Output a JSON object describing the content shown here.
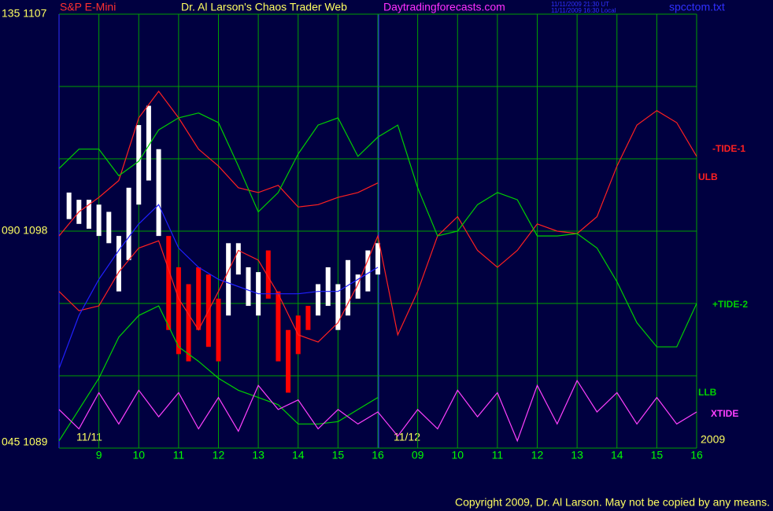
{
  "chart_data": {
    "type": "line",
    "title": "S&P E-Mini",
    "subtitle": "Dr. Al Larson's Chaos Trader Web",
    "website": "Daytradingforecasts.com",
    "timestamps": [
      "11/11/2009 21:30 UT",
      "11/11/2009 16:30 Local"
    ],
    "filename": "spcctom.txt",
    "date_labels": [
      "11/11",
      "11/12"
    ],
    "year_label": "2009",
    "copyright": "Copyright 2009, Dr. Al Larson. May not be copied by any means.",
    "xlim": [
      8,
      24
    ],
    "ylim": [
      1089,
      1107
    ],
    "grid": true,
    "xticks": [
      9,
      10,
      11,
      12,
      13,
      14,
      15,
      16,
      {
        "value": 17,
        "label": "09"
      },
      {
        "value": 18,
        "label": "10"
      },
      {
        "value": 19,
        "label": "11"
      },
      {
        "value": 20,
        "label": "12"
      },
      {
        "value": 21,
        "label": "13"
      },
      {
        "value": 22,
        "label": "14"
      },
      {
        "value": 23,
        "label": "15"
      },
      {
        "value": 24,
        "label": "16"
      }
    ],
    "yticks": [
      {
        "value": 1089,
        "label": "045  1089"
      },
      {
        "value": 1092,
        "label": null
      },
      {
        "value": 1095,
        "label": null
      },
      {
        "value": 1098,
        "label": "090  1098"
      },
      {
        "value": 1101,
        "label": null
      },
      {
        "value": 1104,
        "label": null
      },
      {
        "value": 1107,
        "label": "135  1107"
      }
    ],
    "x": [
      8,
      8.5,
      9,
      9.5,
      10,
      10.5,
      11,
      11.5,
      12,
      12.5,
      13,
      13.5,
      14,
      14.5,
      15,
      15.5,
      16,
      16.5,
      17,
      17.5,
      18,
      18.5,
      19,
      19.5,
      20,
      20.5,
      21,
      21.5,
      22,
      22.5,
      23,
      23.5,
      24
    ],
    "series": [
      {
        "name": "-TIDE-1",
        "color": "#ff2020",
        "values": [
          1095.5,
          1094.7,
          1094.9,
          1096.3,
          1097.3,
          1097.6,
          1095.2,
          1093.9,
          1095.5,
          1097.2,
          1096.8,
          1095.4,
          1093.7,
          1093.4,
          1094.2,
          1095.8,
          1097.8,
          1093.7,
          1095.5,
          1097.8,
          1098.6,
          1097.2,
          1096.5,
          1097.2,
          1098.3,
          1098.0,
          1097.9,
          1098.6,
          1100.7,
          1102.4,
          1103.0,
          1102.5,
          1101.1
        ]
      },
      {
        "name": "ULB",
        "color": "#ff2020",
        "values": [
          1097.8,
          1098.8,
          1099.4,
          1100.1,
          1102.7,
          1103.8,
          1102.7,
          1101.4,
          1100.7,
          1099.8,
          1099.6,
          1099.9,
          1099.0,
          1099.1,
          1099.4,
          1099.6,
          1100.0,
          null,
          null,
          null,
          null,
          null,
          null,
          null,
          null,
          null,
          null,
          null,
          null,
          null,
          null,
          null,
          null
        ]
      },
      {
        "name": "+TIDE-2",
        "color": "#00d000",
        "values": [
          1100.6,
          1101.4,
          1101.4,
          1100.3,
          1100.9,
          1102.2,
          1102.7,
          1102.9,
          1102.5,
          1100.7,
          1098.8,
          1099.6,
          1101.2,
          1102.4,
          1102.7,
          1101.1,
          1101.9,
          1102.4,
          1099.8,
          1097.8,
          1098.0,
          1099.1,
          1099.6,
          1099.3,
          1097.8,
          1097.8,
          1097.9,
          1097.3,
          1095.9,
          1094.2,
          1093.2,
          1093.2,
          1095.0
        ]
      },
      {
        "name": "LLB",
        "color": "#00d000",
        "values": [
          1089.3,
          1090.6,
          1091.9,
          1093.6,
          1094.5,
          1094.9,
          1093.2,
          1092.6,
          1091.9,
          1091.4,
          1091.1,
          1090.8,
          1090.0,
          1090.0,
          1090.1,
          1090.6,
          1091.1,
          null,
          null,
          null,
          null,
          null,
          null,
          null,
          null,
          null,
          null,
          null,
          null,
          null,
          null,
          null,
          null
        ]
      },
      {
        "name": "XTIDE",
        "color": "#ff40ff",
        "values": [
          1090.6,
          1089.8,
          1091.3,
          1090.0,
          1091.4,
          1090.3,
          1091.3,
          1089.8,
          1091.1,
          1089.7,
          1091.6,
          1090.6,
          1091.0,
          1089.8,
          1090.6,
          1090.0,
          1090.5,
          1089.5,
          1090.6,
          1089.8,
          1091.4,
          1090.3,
          1091.3,
          1089.3,
          1091.6,
          1090.0,
          1091.8,
          1090.5,
          1091.3,
          1090.0,
          1091.1,
          1090.0,
          1090.5
        ]
      },
      {
        "color": "#2020ff",
        "values": [
          1092.3,
          1094.5,
          1096.0,
          1097.2,
          1098.3,
          1099.1,
          1097.3,
          1096.5,
          1096.0,
          1095.7,
          1095.4,
          1095.4,
          1095.4,
          1095.5,
          1095.5,
          1096.0,
          1096.5,
          null,
          null,
          null,
          null,
          null,
          null,
          null,
          null,
          null,
          null,
          null,
          null,
          null,
          null,
          null,
          null
        ]
      }
    ],
    "price_bars": {
      "x": [
        8.25,
        8.5,
        8.75,
        9,
        9.25,
        9.5,
        9.75,
        10,
        10.25,
        10.5,
        10.75,
        11,
        11.25,
        11.5,
        11.75,
        12,
        12.25,
        12.5,
        12.75,
        13,
        13.25,
        13.5,
        13.75,
        14,
        14.25,
        14.5,
        14.75,
        15,
        15.25,
        15.5,
        15.75,
        16
      ],
      "high": [
        1099.6,
        1099.3,
        1099.3,
        1099.1,
        1098.8,
        1097.8,
        1099.8,
        1102.4,
        1103.2,
        1101.4,
        1097.8,
        1096.5,
        1095.8,
        1096.5,
        1096.2,
        1095.2,
        1097.5,
        1097.5,
        1096.5,
        1096.3,
        1097.2,
        1095.5,
        1093.9,
        1094.5,
        1094.9,
        1095.8,
        1096.5,
        1095.8,
        1096.8,
        1096.2,
        1097.2,
        1097.5
      ],
      "low": [
        1098.5,
        1098.3,
        1098.1,
        1097.8,
        1097.5,
        1095.5,
        1096.8,
        1099.1,
        1100.1,
        1097.8,
        1093.9,
        1092.9,
        1092.6,
        1093.9,
        1093.2,
        1092.6,
        1094.5,
        1096.2,
        1094.9,
        1094.5,
        1095.2,
        1092.6,
        1091.3,
        1092.9,
        1093.9,
        1094.5,
        1094.9,
        1093.9,
        1094.5,
        1095.2,
        1095.5,
        1096.2
      ],
      "colors": [
        "#ffffff",
        "#ffffff",
        "#ffffff",
        "#ffffff",
        "#ffffff",
        "#ffffff",
        "#ffffff",
        "#ffffff",
        "#ffffff",
        "#ffffff",
        "#ff0000",
        "#ff0000",
        "#ff0000",
        "#ff0000",
        "#ff0000",
        "#ff0000",
        "#ffffff",
        "#ffffff",
        "#ffffff",
        "#ffffff",
        "#ff0000",
        "#ff0000",
        "#ff0000",
        "#ff0000",
        "#ff0000",
        "#ffffff",
        "#ffffff",
        "#ffffff",
        "#ffffff",
        "#ffffff",
        "#ffffff",
        "#ffffff"
      ]
    }
  }
}
